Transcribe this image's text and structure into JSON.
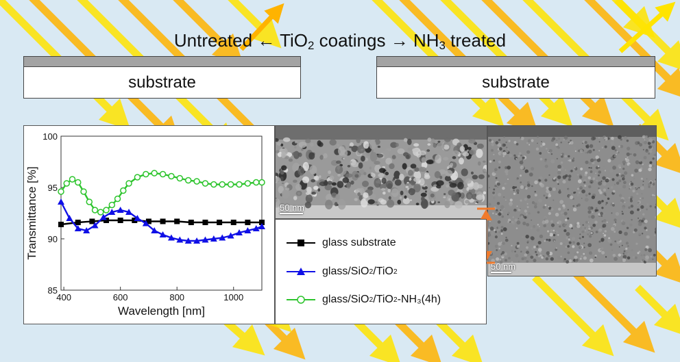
{
  "headline": {
    "left": "Untreated",
    "arrow_left": "←",
    "middle_a": "TiO",
    "middle_sub": "2",
    "middle_b": "coatings",
    "arrow_right": "→",
    "right_a": "NH",
    "right_sub": "3",
    "right_b": "treated"
  },
  "substrates": {
    "left_label": "substrate",
    "right_label": "substrate"
  },
  "micrographs": {
    "scale_left": "50 nm",
    "scale_right": "50 nm"
  },
  "legend": [
    {
      "text_a": "glass substrate",
      "sub1": "",
      "text_b": "",
      "sub2": "",
      "text_c": ""
    },
    {
      "text_a": "glass/SiO",
      "sub1": "2",
      "text_b": "/TiO",
      "sub2": "2",
      "text_c": ""
    },
    {
      "text_a": "glass/SiO",
      "sub1": "2",
      "text_b": "/TiO",
      "sub2": "2",
      "text_c": "-NH₃(4h)"
    }
  ],
  "colors": {
    "background": "#d9e9f3",
    "ray_yellow": "#ffe400",
    "ray_orange": "#ffb300",
    "glass": "#000000",
    "tio2": "#1010e6",
    "nh3": "#2cc42c",
    "thickness_arrow": "#f07a2c"
  },
  "chart_data": {
    "type": "line",
    "xlabel": "Wavelength [nm]",
    "ylabel": "Transmittance [%]",
    "xlim": [
      390,
      1100
    ],
    "ylim": [
      85,
      100
    ],
    "xticks": [
      400,
      600,
      800,
      1000
    ],
    "yticks": [
      85,
      90,
      95,
      100
    ],
    "series": [
      {
        "name": "glass substrate",
        "color": "#000000",
        "marker": "square",
        "x": [
          390,
          450,
          500,
          550,
          600,
          650,
          700,
          750,
          800,
          850,
          900,
          950,
          1000,
          1050,
          1100
        ],
        "y": [
          91.4,
          91.6,
          91.7,
          91.8,
          91.8,
          91.8,
          91.7,
          91.7,
          91.7,
          91.6,
          91.6,
          91.6,
          91.6,
          91.6,
          91.6
        ]
      },
      {
        "name": "glass/SiO2/TiO2",
        "color": "#1010e6",
        "marker": "triangle",
        "x": [
          390,
          420,
          450,
          480,
          510,
          540,
          570,
          600,
          630,
          660,
          690,
          720,
          750,
          780,
          810,
          840,
          870,
          900,
          930,
          960,
          990,
          1020,
          1050,
          1080,
          1100
        ],
        "y": [
          93.6,
          92.0,
          91.0,
          90.8,
          91.3,
          92.1,
          92.6,
          92.8,
          92.6,
          92.0,
          91.5,
          90.8,
          90.4,
          90.1,
          89.9,
          89.8,
          89.8,
          89.9,
          90.0,
          90.1,
          90.3,
          90.6,
          90.8,
          91.0,
          91.2
        ]
      },
      {
        "name": "glass/SiO2/TiO2-NH3(4h)",
        "color": "#2cc42c",
        "marker": "circle",
        "x": [
          390,
          410,
          430,
          450,
          470,
          490,
          510,
          530,
          550,
          570,
          590,
          610,
          630,
          660,
          690,
          720,
          750,
          780,
          810,
          840,
          870,
          900,
          930,
          960,
          990,
          1020,
          1050,
          1080,
          1100
        ],
        "y": [
          94.6,
          95.4,
          95.8,
          95.5,
          94.6,
          93.6,
          92.8,
          92.6,
          92.8,
          93.3,
          93.9,
          94.7,
          95.4,
          96.0,
          96.3,
          96.4,
          96.3,
          96.1,
          95.9,
          95.7,
          95.6,
          95.4,
          95.3,
          95.3,
          95.3,
          95.3,
          95.4,
          95.5,
          95.5
        ]
      }
    ]
  }
}
